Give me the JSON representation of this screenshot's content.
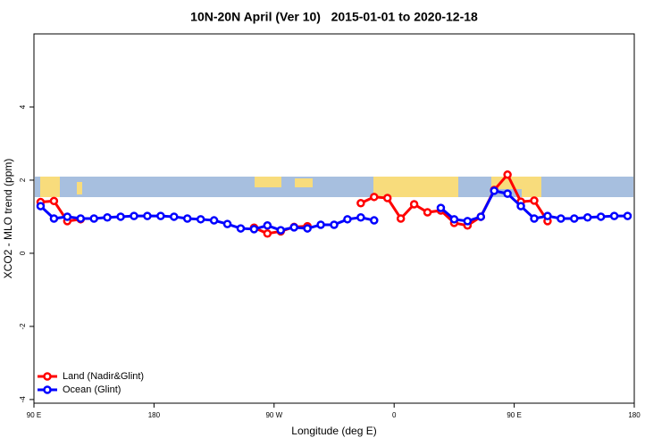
{
  "chart_data": {
    "type": "line",
    "title": "10N-20N April (Ver 10)   2015-01-01 to 2020-12-18",
    "x_label": "Longitude (deg E)",
    "y_label": "XCO2 - MLO trend (ppm)",
    "xlim": [
      90,
      540
    ],
    "ylim": [
      -4.1,
      6
    ],
    "xticks": [
      {
        "value": 90,
        "label": "90 E"
      },
      180,
      {
        "value": 270,
        "label": "90 W"
      },
      {
        "value": 360,
        "label": "0"
      },
      {
        "value": 450,
        "label": "90 E"
      },
      {
        "value": 540,
        "label": "180"
      }
    ],
    "yticks": [
      -4,
      -2,
      0,
      2,
      4
    ],
    "legend": "bottom-left",
    "x": [
      95,
      105,
      115,
      125,
      135,
      145,
      155,
      165,
      175,
      185,
      195,
      205,
      215,
      225,
      235,
      245,
      255,
      265,
      275,
      285,
      295,
      305,
      315,
      325,
      335,
      345,
      355,
      365,
      375,
      385,
      395,
      405,
      415,
      425,
      435,
      445,
      455,
      465,
      475,
      485,
      495,
      505,
      515,
      525,
      535
    ],
    "series": [
      {
        "name": "Land (Nadir&Glint)",
        "color": "#ff0000",
        "values": [
          1.4,
          1.43,
          0.88,
          0.93,
          null,
          null,
          null,
          null,
          null,
          null,
          null,
          null,
          null,
          null,
          null,
          null,
          0.7,
          0.54,
          0.6,
          0.72,
          0.74,
          null,
          null,
          null,
          1.37,
          1.54,
          1.51,
          0.95,
          1.34,
          1.12,
          1.17,
          0.83,
          0.76,
          1.0,
          1.73,
          2.15,
          1.41,
          1.44,
          0.88,
          null,
          null,
          null,
          null,
          null,
          null
        ]
      },
      {
        "name": "Ocean (Glint)",
        "color": "#0000ff",
        "values": [
          1.29,
          0.95,
          1.0,
          0.95,
          0.95,
          0.98,
          1.0,
          1.02,
          1.02,
          1.02,
          1.0,
          0.95,
          0.93,
          0.9,
          0.8,
          0.68,
          0.66,
          0.76,
          0.63,
          0.71,
          0.68,
          0.78,
          0.78,
          0.93,
          0.98,
          0.9,
          null,
          null,
          null,
          null,
          1.24,
          0.93,
          0.88,
          1.0,
          1.71,
          1.63,
          1.29,
          0.95,
          1.02,
          0.95,
          0.95,
          0.98,
          1.0,
          1.02,
          1.02
        ]
      }
    ]
  }
}
